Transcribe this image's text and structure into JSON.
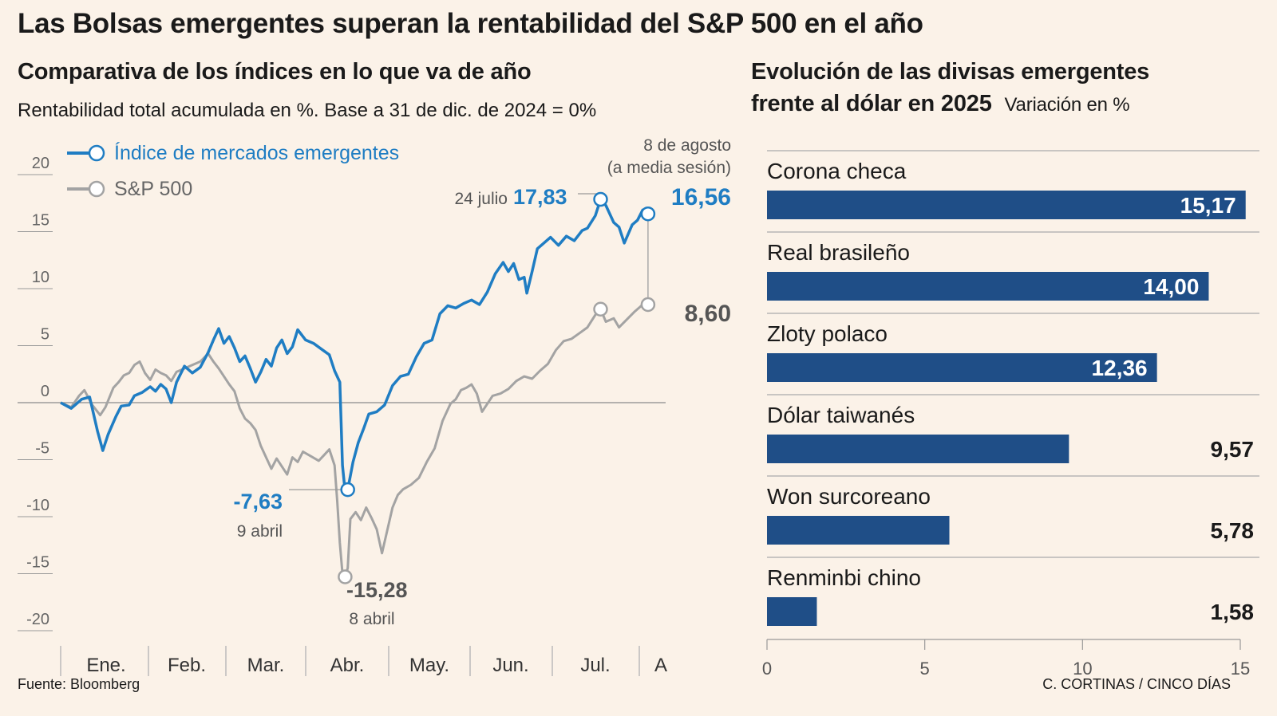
{
  "title": "Las Bolsas emergentes superan la rentabilidad del S&P 500 en el año",
  "left": {
    "subtitle": "Comparativa de los índices en lo que va de año",
    "description": "Rentabilidad total acumulada en %. Base a 31 de dic. de 2024 = 0%"
  },
  "right": {
    "subtitle_line1": "Evolución de las divisas emergentes",
    "subtitle_line2": "frente al dólar en 2025",
    "unit": "Variación en %"
  },
  "footer": {
    "source": "Fuente: Bloomberg",
    "credit": "C. CORTINAS / CINCO DÍAS"
  },
  "colors": {
    "background": "#fbf2e8",
    "em": "#1f7dc3",
    "sp": "#a3a3a3",
    "bar": "#1f4e87"
  },
  "chart_data": [
    {
      "type": "line",
      "title": "Comparativa de los índices en lo que va de año",
      "ylabel": "Rentabilidad total acumulada en %",
      "ylim": [
        -20,
        20
      ],
      "yticks": [
        "20",
        "15",
        "10",
        "5",
        "0",
        "-5",
        "-10",
        "-15",
        "-20"
      ],
      "xticks": [
        "Ene.",
        "Feb.",
        "Mar.",
        "Abr.",
        "May.",
        "Jun.",
        "Jul.",
        "A"
      ],
      "legend": [
        "Índice de mercados emergentes",
        "S&P 500"
      ],
      "series": [
        {
          "name": "Índice de mercados emergentes",
          "points": [
            [
              0,
              0
            ],
            [
              4,
              -0.5
            ],
            [
              8,
              0.3
            ],
            [
              11,
              0.5
            ],
            [
              14,
              -2.5
            ],
            [
              16,
              -4.2
            ],
            [
              18,
              -2.8
            ],
            [
              21,
              -1.2
            ],
            [
              23,
              -0.3
            ],
            [
              26,
              -0.2
            ],
            [
              28,
              0.6
            ],
            [
              31,
              0.9
            ],
            [
              34,
              1.4
            ],
            [
              36,
              1.0
            ],
            [
              38,
              1.6
            ],
            [
              40,
              1.2
            ],
            [
              42,
              0.0
            ],
            [
              44,
              1.8
            ],
            [
              47,
              3.2
            ],
            [
              50,
              2.6
            ],
            [
              53,
              3.1
            ],
            [
              56,
              4.4
            ],
            [
              58,
              5.5
            ],
            [
              60,
              6.5
            ],
            [
              62,
              5.2
            ],
            [
              64,
              5.8
            ],
            [
              66,
              4.8
            ],
            [
              68,
              3.6
            ],
            [
              70,
              4.1
            ],
            [
              72,
              3.0
            ],
            [
              74,
              1.8
            ],
            [
              76,
              2.7
            ],
            [
              78,
              3.8
            ],
            [
              80,
              3.2
            ],
            [
              82,
              4.8
            ],
            [
              84,
              5.5
            ],
            [
              86,
              4.3
            ],
            [
              88,
              4.9
            ],
            [
              90,
              6.4
            ],
            [
              93,
              5.5
            ],
            [
              96,
              5.2
            ],
            [
              99,
              4.7
            ],
            [
              102,
              4.2
            ],
            [
              104,
              2.8
            ],
            [
              106,
              1.8
            ],
            [
              107,
              -5.5
            ],
            [
              108,
              -7.8
            ],
            [
              109,
              -7.63
            ],
            [
              111,
              -5.2
            ],
            [
              113,
              -3.5
            ],
            [
              115,
              -2.3
            ],
            [
              117,
              -1.0
            ],
            [
              120,
              -0.8
            ],
            [
              123,
              -0.2
            ],
            [
              126,
              1.5
            ],
            [
              129,
              2.3
            ],
            [
              132,
              2.5
            ],
            [
              135,
              4.0
            ],
            [
              138,
              5.2
            ],
            [
              141,
              5.5
            ],
            [
              144,
              7.8
            ],
            [
              147,
              8.5
            ],
            [
              150,
              8.3
            ],
            [
              153,
              8.7
            ],
            [
              156,
              9.0
            ],
            [
              159,
              8.6
            ],
            [
              162,
              9.7
            ],
            [
              165,
              11.3
            ],
            [
              168,
              12.3
            ],
            [
              170,
              11.5
            ],
            [
              172,
              12.2
            ],
            [
              174,
              10.8
            ],
            [
              176,
              11.0
            ],
            [
              177,
              9.6
            ],
            [
              179,
              11.5
            ],
            [
              181,
              13.5
            ],
            [
              183,
              13.9
            ],
            [
              186,
              14.5
            ],
            [
              189,
              13.8
            ],
            [
              192,
              14.6
            ],
            [
              195,
              14.2
            ],
            [
              198,
              15.1
            ],
            [
              200,
              15.3
            ],
            [
              203,
              16.4
            ],
            [
              205,
              17.83
            ],
            [
              207,
              17.3
            ],
            [
              210,
              15.8
            ],
            [
              212,
              15.4
            ],
            [
              214,
              14.0
            ],
            [
              217,
              15.6
            ],
            [
              219,
              16.0
            ],
            [
              221,
              16.9
            ],
            [
              223,
              16.56
            ]
          ]
        },
        {
          "name": "S&P 500",
          "points": [
            [
              0,
              0
            ],
            [
              4,
              -0.4
            ],
            [
              7,
              0.6
            ],
            [
              9,
              1.1
            ],
            [
              12,
              -0.2
            ],
            [
              15,
              -1.1
            ],
            [
              17,
              -0.4
            ],
            [
              20,
              1.3
            ],
            [
              22,
              1.8
            ],
            [
              24,
              2.4
            ],
            [
              26,
              2.6
            ],
            [
              28,
              3.3
            ],
            [
              30,
              3.6
            ],
            [
              32,
              2.6
            ],
            [
              34,
              2.0
            ],
            [
              36,
              2.9
            ],
            [
              38,
              2.6
            ],
            [
              40,
              2.4
            ],
            [
              42,
              1.9
            ],
            [
              44,
              2.7
            ],
            [
              47,
              3.0
            ],
            [
              50,
              3.3
            ],
            [
              53,
              3.6
            ],
            [
              56,
              4.3
            ],
            [
              58,
              3.6
            ],
            [
              60,
              3.0
            ],
            [
              62,
              2.3
            ],
            [
              64,
              1.6
            ],
            [
              66,
              1.0
            ],
            [
              68,
              -0.5
            ],
            [
              70,
              -1.4
            ],
            [
              72,
              -1.8
            ],
            [
              74,
              -2.4
            ],
            [
              76,
              -3.8
            ],
            [
              78,
              -4.8
            ],
            [
              80,
              -5.8
            ],
            [
              82,
              -4.9
            ],
            [
              84,
              -5.6
            ],
            [
              86,
              -6.3
            ],
            [
              88,
              -4.8
            ],
            [
              90,
              -5.2
            ],
            [
              92,
              -4.3
            ],
            [
              95,
              -4.7
            ],
            [
              98,
              -5.1
            ],
            [
              100,
              -4.6
            ],
            [
              102,
              -4.1
            ],
            [
              104,
              -5.5
            ],
            [
              105,
              -8.6
            ],
            [
              106,
              -12.3
            ],
            [
              107,
              -15.0
            ],
            [
              108,
              -15.28
            ],
            [
              109,
              -14.5
            ],
            [
              110,
              -10.2
            ],
            [
              112,
              -9.6
            ],
            [
              114,
              -10.3
            ],
            [
              116,
              -9.2
            ],
            [
              118,
              -10.1
            ],
            [
              120,
              -11.1
            ],
            [
              122,
              -13.2
            ],
            [
              124,
              -11.2
            ],
            [
              126,
              -9.2
            ],
            [
              128,
              -8.1
            ],
            [
              130,
              -7.6
            ],
            [
              133,
              -7.2
            ],
            [
              136,
              -6.6
            ],
            [
              139,
              -5.2
            ],
            [
              142,
              -4.0
            ],
            [
              145,
              -1.6
            ],
            [
              148,
              -0.1
            ],
            [
              150,
              0.3
            ],
            [
              152,
              1.1
            ],
            [
              154,
              1.3
            ],
            [
              156,
              1.6
            ],
            [
              158,
              0.8
            ],
            [
              160,
              -0.8
            ],
            [
              162,
              -0.1
            ],
            [
              164,
              0.6
            ],
            [
              167,
              0.8
            ],
            [
              170,
              1.2
            ],
            [
              173,
              1.9
            ],
            [
              176,
              2.3
            ],
            [
              179,
              2.1
            ],
            [
              182,
              2.8
            ],
            [
              185,
              3.4
            ],
            [
              188,
              4.6
            ],
            [
              191,
              5.4
            ],
            [
              194,
              5.6
            ],
            [
              197,
              6.1
            ],
            [
              200,
              6.6
            ],
            [
              203,
              7.7
            ],
            [
              205,
              8.2
            ],
            [
              207,
              7.1
            ],
            [
              210,
              7.4
            ],
            [
              212,
              6.6
            ],
            [
              215,
              7.3
            ],
            [
              218,
              8.0
            ],
            [
              221,
              8.6
            ],
            [
              223,
              8.6
            ]
          ]
        }
      ],
      "annotations": {
        "em_peak": {
          "date": "24 julio",
          "value": "17,83"
        },
        "em_last": {
          "date_line1": "8 de agosto",
          "date_line2": "(a media sesión)",
          "value": "16,56"
        },
        "em_low": {
          "date": "9 abril",
          "value": "-7,63"
        },
        "sp_low": {
          "date": "8 abril",
          "value": "-15,28"
        },
        "sp_last": {
          "value": "8,60"
        }
      }
    },
    {
      "type": "bar",
      "title": "Evolución de las divisas emergentes frente al dólar en 2025",
      "ylabel": "Variación en %",
      "xlim": [
        0,
        15
      ],
      "xticks": [
        "0",
        "5",
        "10",
        "15"
      ],
      "categories": [
        "Corona checa",
        "Real brasileño",
        "Zloty polaco",
        "Dólar taiwanés",
        "Won surcoreano",
        "Renminbi chino"
      ],
      "values": [
        15.17,
        14.0,
        12.36,
        9.57,
        5.78,
        1.58
      ],
      "value_labels": [
        "15,17",
        "14,00",
        "12,36",
        "9,57",
        "5,78",
        "1,58"
      ]
    }
  ]
}
